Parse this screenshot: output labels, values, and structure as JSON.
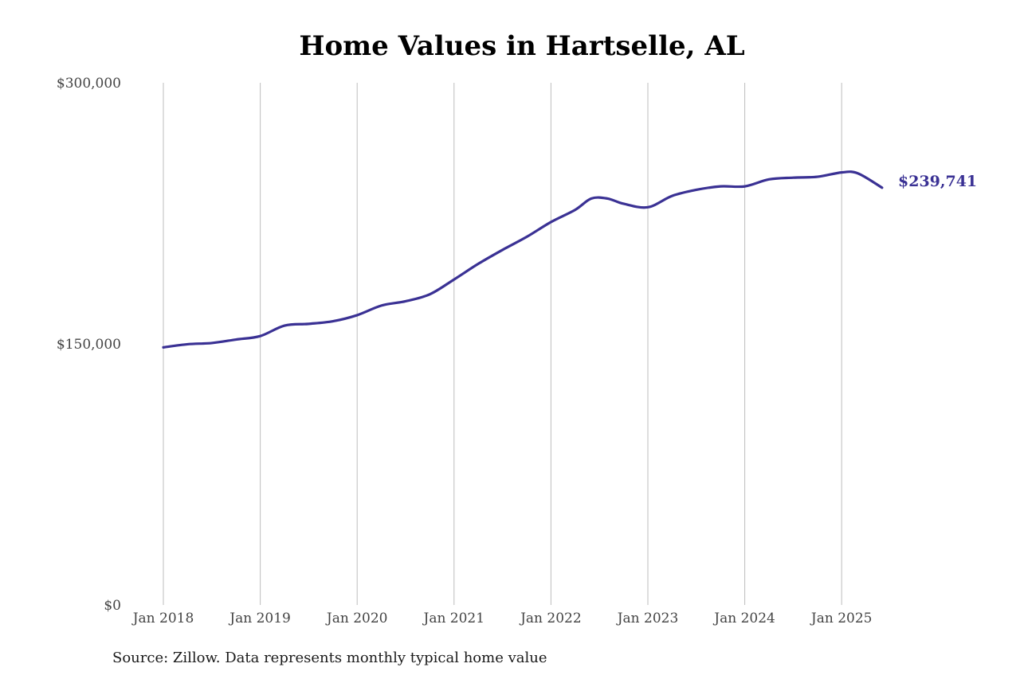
{
  "chart_data": {
    "type": "line",
    "title": "Home Values in Hartselle, AL",
    "xlabel": "",
    "ylabel": "",
    "ylim": [
      0,
      300000
    ],
    "y_ticks": [
      {
        "value": 0,
        "label": "$0"
      },
      {
        "value": 150000,
        "label": "$150,000"
      },
      {
        "value": 300000,
        "label": "$300,000"
      }
    ],
    "x_range": [
      "2018-01",
      "2025-06"
    ],
    "x_ticks": [
      {
        "date": "2018-01",
        "label": "Jan 2018"
      },
      {
        "date": "2019-01",
        "label": "Jan 2019"
      },
      {
        "date": "2020-01",
        "label": "Jan 2020"
      },
      {
        "date": "2021-01",
        "label": "Jan 2021"
      },
      {
        "date": "2022-01",
        "label": "Jan 2022"
      },
      {
        "date": "2023-01",
        "label": "Jan 2023"
      },
      {
        "date": "2024-01",
        "label": "Jan 2024"
      },
      {
        "date": "2025-01",
        "label": "Jan 2025"
      }
    ],
    "grid": {
      "vertical": true,
      "horizontal": false
    },
    "legend": "none",
    "series": [
      {
        "color": "#3a3194",
        "points": [
          {
            "x": "2018-01",
            "y": 148000
          },
          {
            "x": "2018-04",
            "y": 149800
          },
          {
            "x": "2018-07",
            "y": 150500
          },
          {
            "x": "2018-10",
            "y": 152500
          },
          {
            "x": "2019-01",
            "y": 154500
          },
          {
            "x": "2019-04",
            "y": 160500
          },
          {
            "x": "2019-07",
            "y": 161500
          },
          {
            "x": "2019-10",
            "y": 163000
          },
          {
            "x": "2020-01",
            "y": 166500
          },
          {
            "x": "2020-04",
            "y": 172000
          },
          {
            "x": "2020-07",
            "y": 174500
          },
          {
            "x": "2020-10",
            "y": 178500
          },
          {
            "x": "2021-01",
            "y": 187000
          },
          {
            "x": "2021-04",
            "y": 196000
          },
          {
            "x": "2021-07",
            "y": 204000
          },
          {
            "x": "2021-10",
            "y": 211500
          },
          {
            "x": "2022-01",
            "y": 220000
          },
          {
            "x": "2022-04",
            "y": 227000
          },
          {
            "x": "2022-06",
            "y": 233500
          },
          {
            "x": "2022-08",
            "y": 233500
          },
          {
            "x": "2022-10",
            "y": 230500
          },
          {
            "x": "2023-01",
            "y": 228500
          },
          {
            "x": "2023-04",
            "y": 235000
          },
          {
            "x": "2023-07",
            "y": 238500
          },
          {
            "x": "2023-10",
            "y": 240500
          },
          {
            "x": "2024-01",
            "y": 240500
          },
          {
            "x": "2024-04",
            "y": 244500
          },
          {
            "x": "2024-07",
            "y": 245500
          },
          {
            "x": "2024-10",
            "y": 246000
          },
          {
            "x": "2025-01",
            "y": 248500
          },
          {
            "x": "2025-03",
            "y": 248000
          },
          {
            "x": "2025-06",
            "y": 239741
          }
        ]
      }
    ],
    "end_label": "$239,741",
    "source": "Source: Zillow. Data represents monthly typical home value"
  }
}
